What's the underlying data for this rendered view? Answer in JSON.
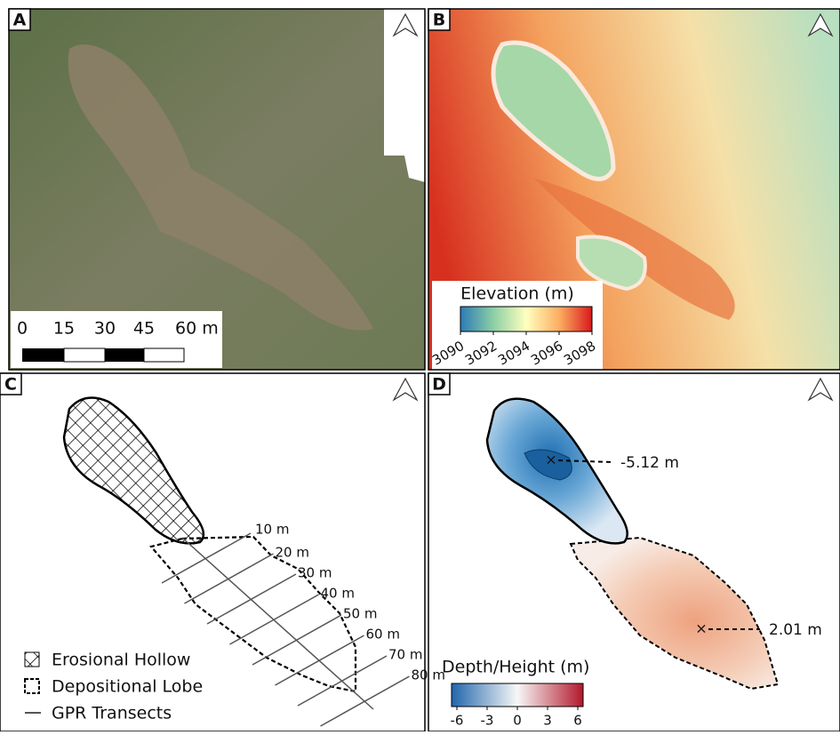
{
  "panels": [
    {
      "label": "A",
      "scale_bar": {
        "labels": [
          "0",
          "15",
          "30",
          "45",
          "60 m"
        ]
      }
    },
    {
      "label": "B",
      "legend": {
        "title": "Elevation (m)",
        "ticks": [
          "3090",
          "3092",
          "3094",
          "3096",
          "3098"
        ]
      }
    },
    {
      "label": "C",
      "transects": [
        "10 m",
        "20 m",
        "30 m",
        "40 m",
        "50 m",
        "60 m",
        "70 m",
        "80 m"
      ],
      "legend": [
        "Erosional Hollow",
        "Depositional Lobe",
        "GPR Transects"
      ]
    },
    {
      "label": "D",
      "annotations": [
        "-5.12 m",
        "2.01 m"
      ],
      "legend": {
        "title": "Depth/Height (m)",
        "ticks": [
          "-6",
          "-3",
          "0",
          "3",
          "6"
        ]
      }
    }
  ]
}
